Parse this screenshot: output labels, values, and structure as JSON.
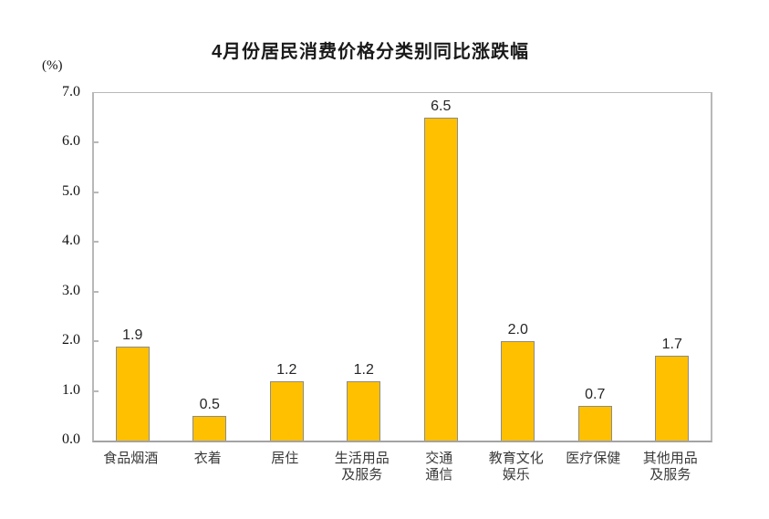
{
  "chart": {
    "title": "4月份居民消费价格分类别同比涨跌幅",
    "unit_label": "(%)"
  },
  "chart_data": {
    "type": "bar",
    "title": "4月份居民消费价格分类别同比涨跌幅",
    "unit": "(%)",
    "categories": [
      "食品烟酒",
      "衣着",
      "居住",
      "生活用品\n及服务",
      "交通\n通信",
      "教育文化\n娱乐",
      "医疗保健",
      "其他用品\n及服务"
    ],
    "values": [
      1.9,
      0.5,
      1.2,
      1.2,
      6.5,
      2.0,
      0.7,
      1.7
    ],
    "value_labels": [
      "1.9",
      "0.5",
      "1.2",
      "1.2",
      "6.5",
      "2.0",
      "0.7",
      "1.7"
    ],
    "xlabel": "",
    "ylabel": "(%)",
    "ylim": [
      0,
      7
    ],
    "ytick_labels": [
      "0.0",
      "1.0",
      "2.0",
      "3.0",
      "4.0",
      "5.0",
      "6.0",
      "7.0"
    ],
    "grid": false,
    "legend": null,
    "bar_color": "#FFC000",
    "bar_border_color": "#8C8C8C",
    "axis_color": "#B8B8B8"
  }
}
